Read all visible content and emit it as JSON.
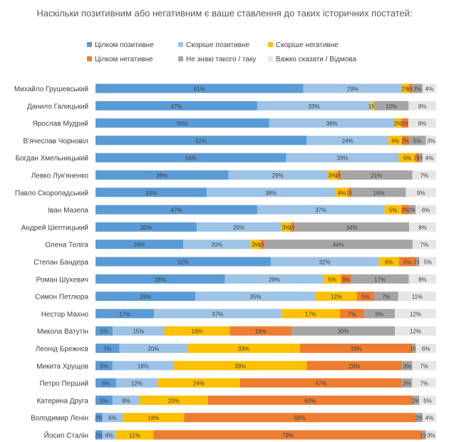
{
  "chart_data": {
    "type": "bar",
    "stacked": true,
    "orientation": "horizontal",
    "title": "Наскільки позитивним або негативним є ваше ставлення до таких історичних постатей:",
    "xlim": [
      0,
      100
    ],
    "legend_position": "top",
    "categories": [
      "Михайло Грушевський",
      "Данило Галицький",
      "Ярослав Мудрий",
      "В'ячеслав Чорновіл",
      "Богдан Хмельницький",
      "Левко Лук'яненко",
      "Павло Скоропадський",
      "Іван Мазепа",
      "Андрей Шептицький",
      "Олена Теліга",
      "Степан Бандера",
      "Роман Шухевич",
      "Симон Петлюра",
      "Нестор Махно",
      "Микола Ватутін",
      "Леонід Брежнєв",
      "Микита Хрущов",
      "Петро Перший",
      "Катерина Друга",
      "Володимир Ленін",
      "Йосип Сталін"
    ],
    "series": [
      {
        "name": "Цілком позитивне",
        "color": "#5B9BD5",
        "values": [
          61,
          47,
          50,
          62,
          56,
          39,
          33,
          47,
          30,
          26,
          52,
          38,
          29,
          17,
          5,
          7,
          5,
          6,
          5,
          2,
          2
        ]
      },
      {
        "name": "Скоріше позитивне",
        "color": "#9DC3E6",
        "values": [
          29,
          33,
          36,
          24,
          33,
          29,
          38,
          37,
          25,
          20,
          32,
          29,
          35,
          37,
          15,
          20,
          18,
          12,
          8,
          6,
          4
        ]
      },
      {
        "name": "Скоріше негативне",
        "color": "#FFC000",
        "values": [
          2,
          1,
          2,
          4,
          5,
          3,
          4,
          5,
          3,
          3,
          6,
          5,
          12,
          17,
          19,
          33,
          39,
          24,
          20,
          18,
          11
        ]
      },
      {
        "name": "Цілком негативне",
        "color": "#ED7D31",
        "values": [
          1,
          0,
          2,
          2,
          1,
          1,
          1,
          2,
          1,
          1,
          5,
          3,
          5,
          7,
          18,
          33,
          28,
          47,
          60,
          68,
          79
        ]
      },
      {
        "name": "Не знаю такого / таку",
        "color": "#A5A5A5",
        "values": [
          3,
          10,
          0,
          5,
          1,
          21,
          16,
          2,
          34,
          44,
          1,
          17,
          7,
          9,
          30,
          1,
          3,
          3,
          2,
          2,
          1
        ]
      },
      {
        "name": "Важко сказати / Відмова",
        "color": "#E7E6E6",
        "values": [
          4,
          8,
          8,
          3,
          4,
          7,
          9,
          6,
          8,
          7,
          5,
          8,
          11,
          12,
          12,
          6,
          7,
          7,
          5,
          4,
          3
        ]
      }
    ]
  }
}
